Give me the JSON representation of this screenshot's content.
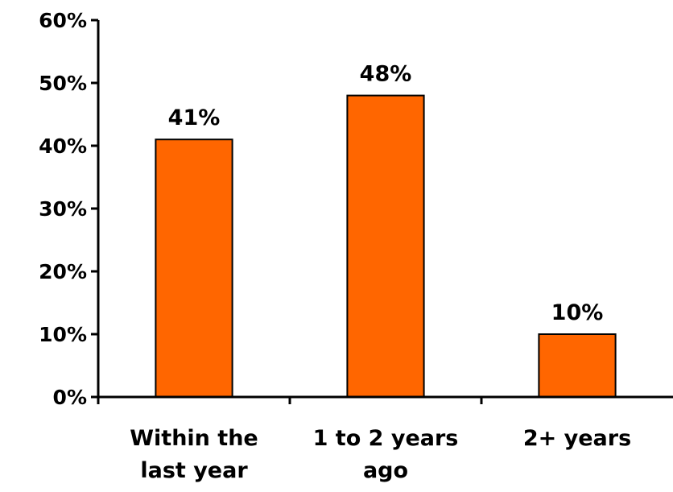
{
  "chart_data": {
    "type": "bar",
    "categories": [
      [
        "Within the",
        "last year"
      ],
      [
        "1 to 2 years",
        "ago"
      ],
      [
        "2+ years"
      ]
    ],
    "values": [
      41,
      48,
      10
    ],
    "data_labels": [
      "41%",
      "48%",
      "10%"
    ],
    "ylim": [
      0,
      60
    ],
    "yticks": [
      0,
      10,
      20,
      30,
      40,
      50,
      60
    ],
    "ytick_labels": [
      "0%",
      "10%",
      "20%",
      "30%",
      "40%",
      "50%",
      "60%"
    ],
    "title": "",
    "xlabel": "",
    "ylabel": "",
    "grid": false,
    "bar_color": "#FF6600",
    "bar_edge_color": "#000000"
  }
}
